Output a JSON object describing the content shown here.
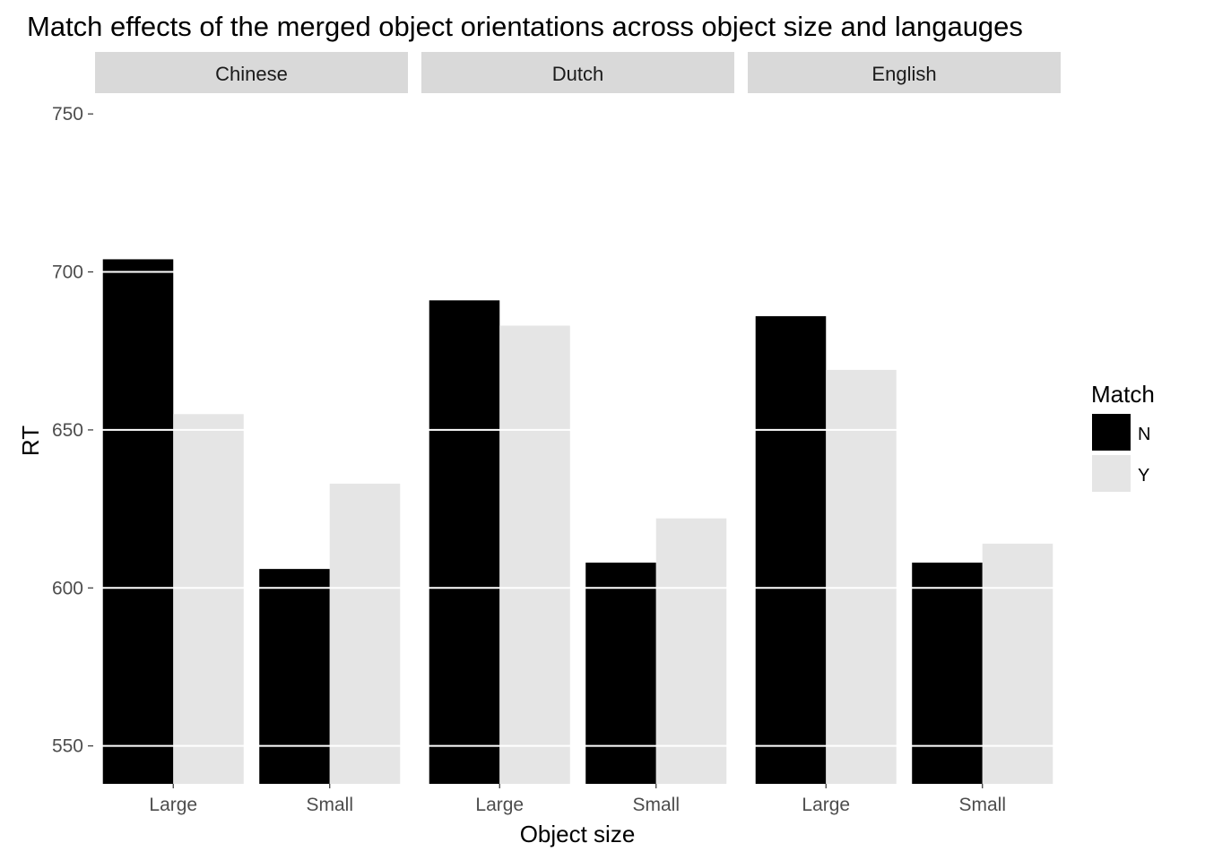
{
  "chart_data": {
    "type": "bar",
    "title": "Match effects of the merged object orientations across object size and langauges",
    "xlabel": "Object size",
    "ylabel": "RT",
    "ylim": [
      538,
      756
    ],
    "yticks": [
      550,
      600,
      650,
      700,
      750
    ],
    "categories": [
      "Large",
      "Small"
    ],
    "legend": {
      "title": "Match",
      "position": "right"
    },
    "grid": true,
    "series_colors": {
      "N": "#000000",
      "Y": "#e5e5e5"
    },
    "panels": [
      {
        "name": "Chinese",
        "series": [
          {
            "name": "N",
            "values": [
              704,
              606
            ]
          },
          {
            "name": "Y",
            "values": [
              655,
              633
            ]
          }
        ]
      },
      {
        "name": "Dutch",
        "series": [
          {
            "name": "N",
            "values": [
              691,
              608
            ]
          },
          {
            "name": "Y",
            "values": [
              683,
              622
            ]
          }
        ]
      },
      {
        "name": "English",
        "series": [
          {
            "name": "N",
            "values": [
              686,
              608
            ]
          },
          {
            "name": "Y",
            "values": [
              669,
              614
            ]
          }
        ]
      }
    ]
  }
}
